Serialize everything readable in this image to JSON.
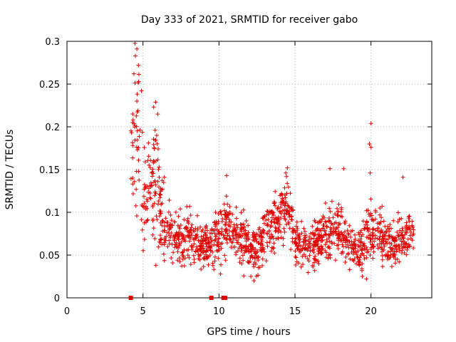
{
  "chart_data": {
    "type": "scatter",
    "title": "Day 333 of 2021, SRMTID for receiver gabo",
    "xlabel": "GPS time / hours",
    "ylabel": "SRMTID / TECUs",
    "xlim": [
      0,
      24
    ],
    "ylim": [
      0,
      0.3
    ],
    "xticks": [
      0,
      5,
      10,
      15,
      20
    ],
    "xtick_labels": [
      "0",
      "5",
      "10",
      "15",
      "20"
    ],
    "yticks": [
      0,
      0.05,
      0.1,
      0.15,
      0.2,
      0.25,
      0.3
    ],
    "ytick_labels": [
      "0",
      "0.05",
      "0.1",
      "0.15",
      "0.2",
      "0.25",
      "0.3"
    ],
    "grid": true,
    "legend": "none",
    "marker": "+",
    "color": "#e00000",
    "zero_markers": [
      {
        "x": 4.2,
        "y": 0
      },
      {
        "x": 9.5,
        "y": 0
      },
      {
        "x": 10.3,
        "y": 0
      },
      {
        "x": 10.4,
        "y": 0
      }
    ],
    "series": [
      {
        "name": "gabo",
        "trend_x": [
          4.2,
          4.4,
          4.6,
          4.8,
          5.0,
          5.3,
          5.6,
          5.9,
          6.2,
          6.5,
          7.0,
          7.5,
          8.0,
          8.5,
          9.0,
          9.5,
          10.0,
          10.5,
          11.0,
          11.5,
          12.0,
          12.5,
          13.0,
          13.5,
          14.0,
          14.5,
          15.0,
          15.5,
          16.0,
          16.5,
          17.0,
          17.5,
          18.0,
          18.5,
          19.0,
          19.5,
          20.0,
          20.5,
          21.0,
          21.5,
          22.0,
          22.5,
          22.8
        ],
        "trend_y": [
          0.14,
          0.21,
          0.19,
          0.16,
          0.11,
          0.115,
          0.13,
          0.14,
          0.1,
          0.085,
          0.07,
          0.065,
          0.075,
          0.065,
          0.058,
          0.065,
          0.07,
          0.085,
          0.07,
          0.072,
          0.058,
          0.05,
          0.075,
          0.085,
          0.095,
          0.11,
          0.07,
          0.06,
          0.058,
          0.065,
          0.072,
          0.078,
          0.075,
          0.065,
          0.055,
          0.06,
          0.08,
          0.075,
          0.068,
          0.06,
          0.07,
          0.075,
          0.07
        ],
        "spread": 0.022,
        "count": 1500,
        "peaks": [
          {
            "x": 4.6,
            "y": 0.291
          },
          {
            "x": 4.5,
            "y": 0.283
          },
          {
            "x": 4.7,
            "y": 0.272
          },
          {
            "x": 4.4,
            "y": 0.262
          },
          {
            "x": 4.9,
            "y": 0.242
          },
          {
            "x": 4.6,
            "y": 0.23
          },
          {
            "x": 5.8,
            "y": 0.196
          },
          {
            "x": 5.9,
            "y": 0.19
          },
          {
            "x": 10.5,
            "y": 0.143
          },
          {
            "x": 14.5,
            "y": 0.152
          },
          {
            "x": 14.4,
            "y": 0.146
          },
          {
            "x": 17.3,
            "y": 0.151
          },
          {
            "x": 18.2,
            "y": 0.151
          },
          {
            "x": 20.0,
            "y": 0.204
          },
          {
            "x": 19.9,
            "y": 0.18
          },
          {
            "x": 20.0,
            "y": 0.176
          },
          {
            "x": 19.95,
            "y": 0.146
          },
          {
            "x": 22.1,
            "y": 0.141
          },
          {
            "x": 12.3,
            "y": 0.02
          },
          {
            "x": 12.1,
            "y": 0.025
          },
          {
            "x": 19.7,
            "y": 0.022
          },
          {
            "x": 10.1,
            "y": 0.028
          }
        ]
      }
    ]
  }
}
